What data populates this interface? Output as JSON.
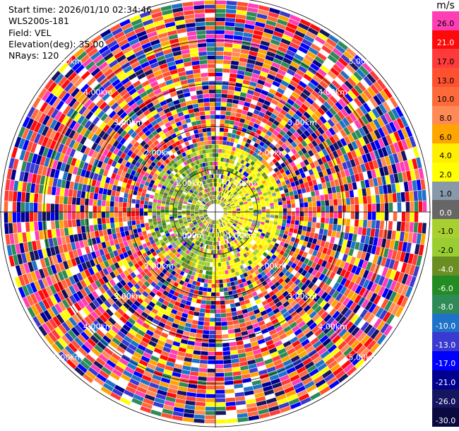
{
  "info": {
    "start_time": "Start time: 2026/01/10 02:34:46",
    "site": "WLS200s-181",
    "field": "Field: VEL",
    "elevation": "Elevation(deg): 35.00",
    "nrays": "NRays: 120"
  },
  "colorbar": {
    "unit": "m/s",
    "levels": [
      {
        "label": "26.0",
        "color": "#ff3eb5"
      },
      {
        "label": "21.0",
        "color": "#ff0a0a"
      },
      {
        "label": "17.0",
        "color": "#ff3a3a"
      },
      {
        "label": "13.0",
        "color": "#ff5030"
      },
      {
        "label": "10.0",
        "color": "#ff6a3a"
      },
      {
        "label": "8.0",
        "color": "#ff8a55"
      },
      {
        "label": "6.0",
        "color": "#ffa500"
      },
      {
        "label": "4.0",
        "color": "#ffee00"
      },
      {
        "label": "2.0",
        "color": "#ffff00"
      },
      {
        "label": "1.0",
        "color": "#8899aa"
      },
      {
        "label": "0.0",
        "color": "#666666"
      },
      {
        "label": "-1.0",
        "color": "#a8d030"
      },
      {
        "label": "-2.0",
        "color": "#9acd32"
      },
      {
        "label": "-4.0",
        "color": "#6b8e23"
      },
      {
        "label": "-6.0",
        "color": "#228b22"
      },
      {
        "label": "-8.0",
        "color": "#2e8b57"
      },
      {
        "label": "-10.0",
        "color": "#1e73c8"
      },
      {
        "label": "-13.0",
        "color": "#3a3ad0"
      },
      {
        "label": "-17.0",
        "color": "#0000ff"
      },
      {
        "label": "-21.0",
        "color": "#000090"
      },
      {
        "label": "-26.0",
        "color": "#151560"
      },
      {
        "label": "-30.0",
        "color": "#0a0a40"
      }
    ]
  },
  "range_rings": {
    "labels": [
      "1.00km",
      "2.00km",
      "3.00km",
      "4.00km",
      "5.00km"
    ]
  }
}
